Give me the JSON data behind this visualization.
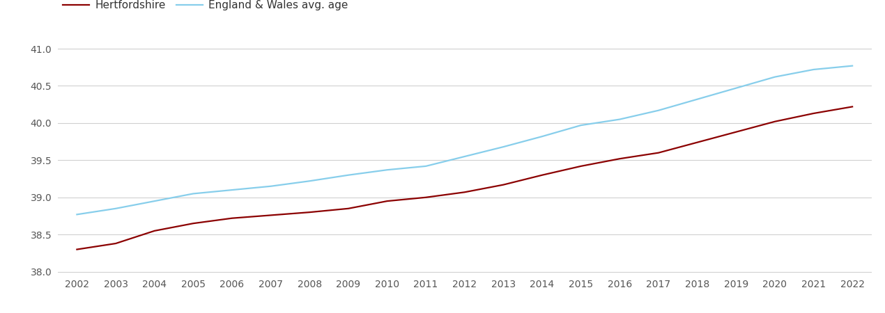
{
  "years": [
    2002,
    2003,
    2004,
    2005,
    2006,
    2007,
    2008,
    2009,
    2010,
    2011,
    2012,
    2013,
    2014,
    2015,
    2016,
    2017,
    2018,
    2019,
    2020,
    2021,
    2022
  ],
  "hertfordshire": [
    38.3,
    38.38,
    38.55,
    38.65,
    38.72,
    38.76,
    38.8,
    38.85,
    38.95,
    39.0,
    39.07,
    39.17,
    39.3,
    39.42,
    39.52,
    39.6,
    39.74,
    39.88,
    40.02,
    40.13,
    40.22
  ],
  "england_wales": [
    38.77,
    38.85,
    38.95,
    39.05,
    39.1,
    39.15,
    39.22,
    39.3,
    39.37,
    39.42,
    39.55,
    39.68,
    39.82,
    39.97,
    40.05,
    40.17,
    40.32,
    40.47,
    40.62,
    40.72,
    40.77
  ],
  "herts_color": "#8B0000",
  "ew_color": "#87CEEB",
  "herts_label": "Hertfordshire",
  "ew_label": "England & Wales avg. age",
  "ylim": [
    37.95,
    41.15
  ],
  "yticks": [
    38.0,
    38.5,
    39.0,
    39.5,
    40.0,
    40.5,
    41.0
  ],
  "background_color": "#ffffff",
  "grid_color": "#d0d0d0",
  "line_width": 1.6,
  "legend_fontsize": 11,
  "tick_fontsize": 10,
  "tick_color": "#555555",
  "legend_text_color": "#333333"
}
